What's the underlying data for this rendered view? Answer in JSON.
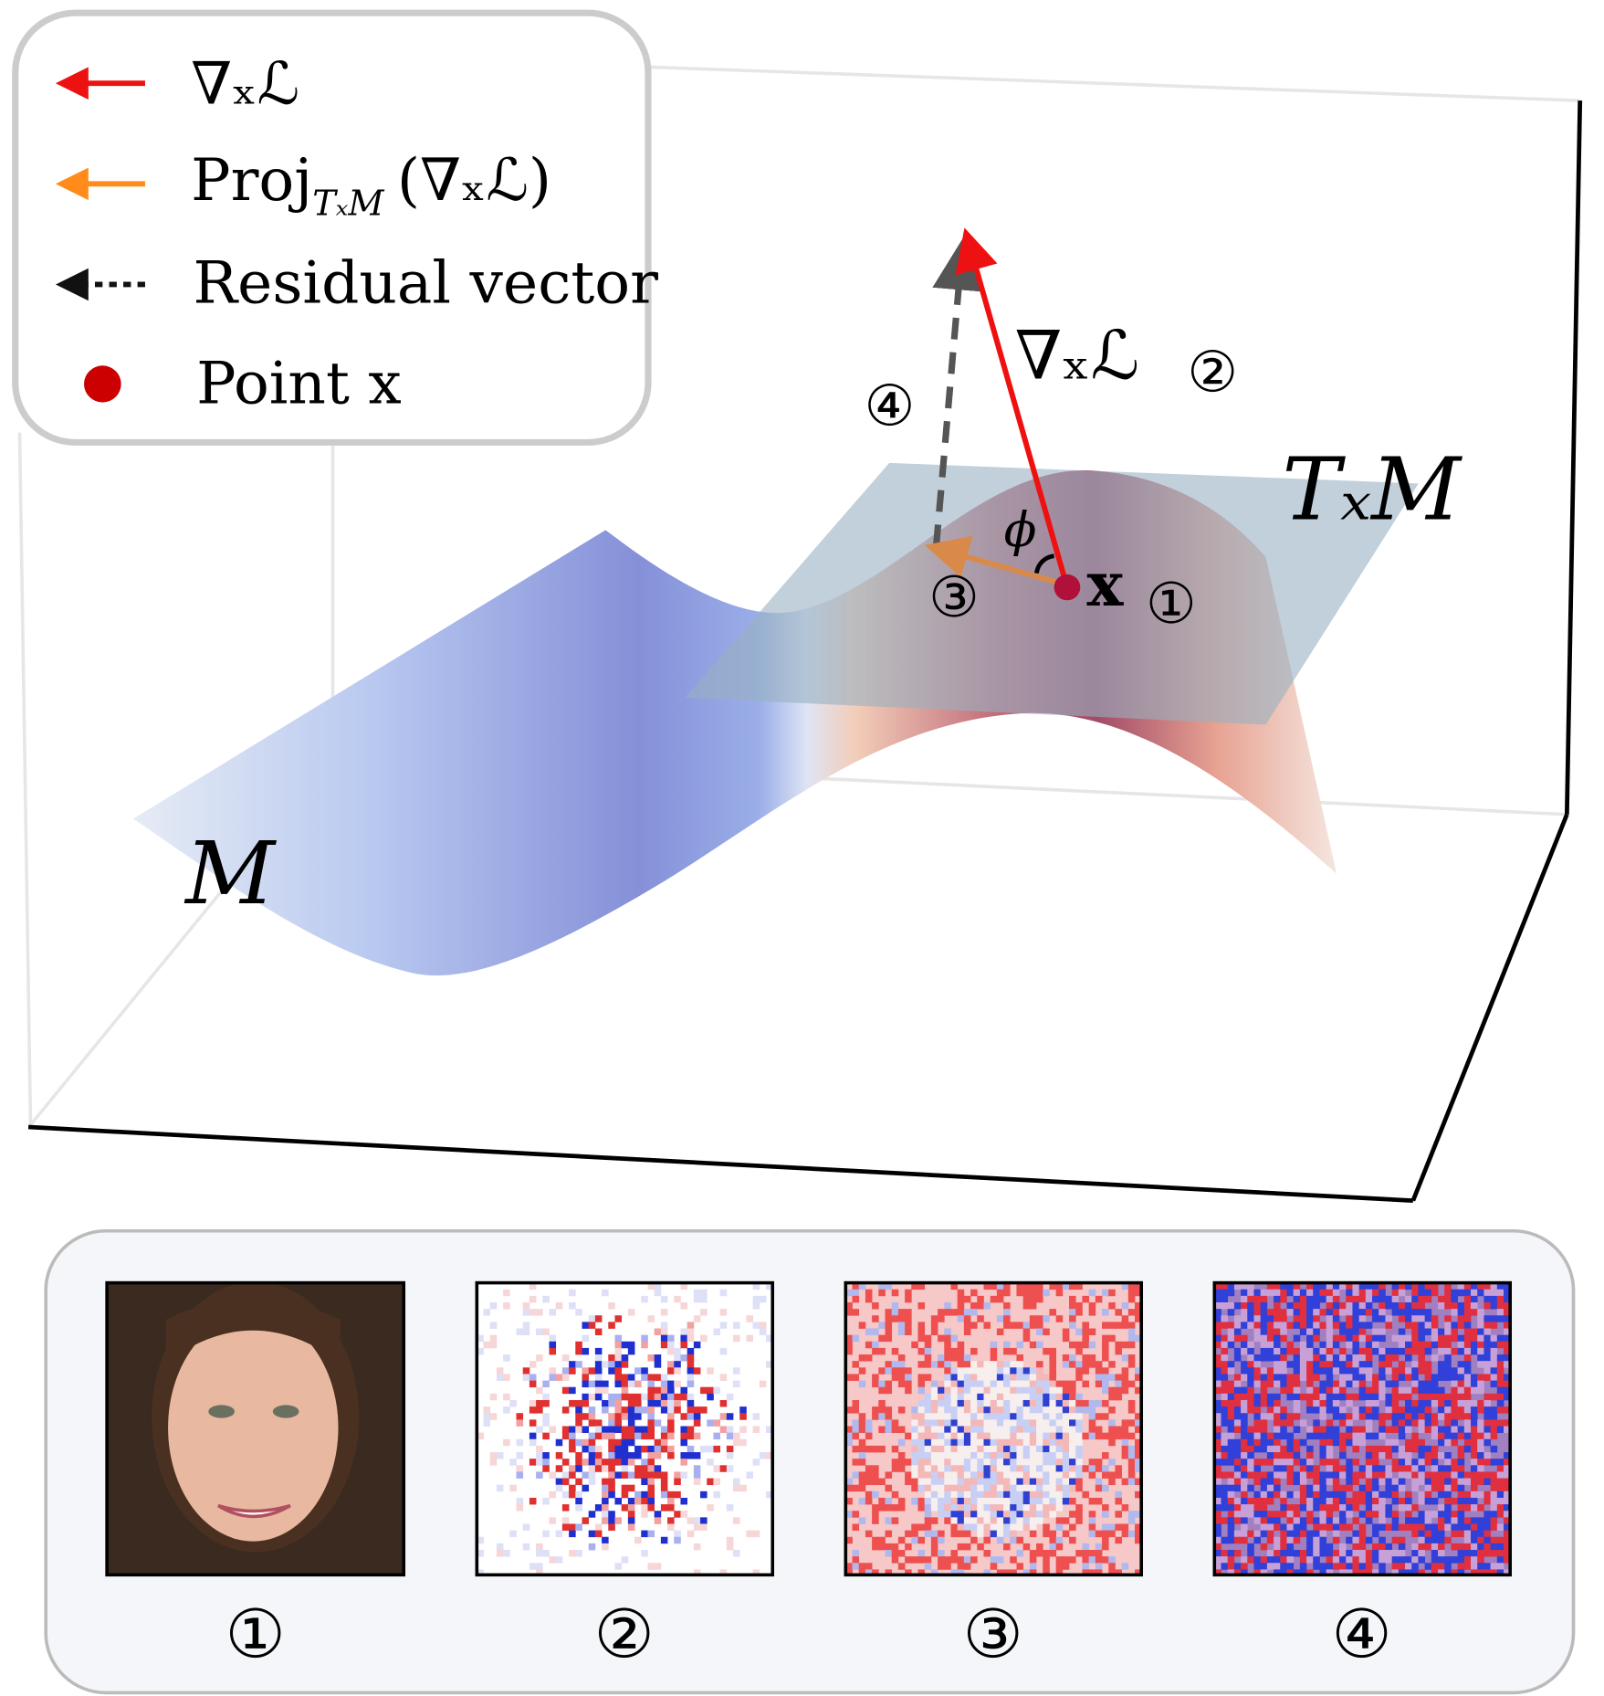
{
  "legend": {
    "items": [
      {
        "label": "∇ₓℒ",
        "color": "#ee1111",
        "icon": "red-arrow-icon"
      },
      {
        "label": "Proj",
        "sub": "TₓM",
        "suffix": "(∇ₓℒ)",
        "color": "#ff8c1a",
        "icon": "orange-arrow-icon"
      },
      {
        "label": "Residual vector",
        "color": "#111111",
        "icon": "dotted-arrow-icon"
      },
      {
        "label": "Point x",
        "color": "#cc0000",
        "icon": "red-dot-icon"
      }
    ]
  },
  "plot": {
    "gradient_label": "∇ₓℒ",
    "gradient_num": "②",
    "residual_num": "④",
    "projection_num": "③",
    "point_label": "x",
    "point_num": "①",
    "tangent_label": "TₓM",
    "angle_label": "ϕ",
    "manifold_label": "M"
  },
  "panel": {
    "items": [
      {
        "num": "①",
        "kind": "face"
      },
      {
        "num": "②",
        "kind": "gradient-noise"
      },
      {
        "num": "③",
        "kind": "projection"
      },
      {
        "num": "④",
        "kind": "residual-noise"
      }
    ]
  }
}
